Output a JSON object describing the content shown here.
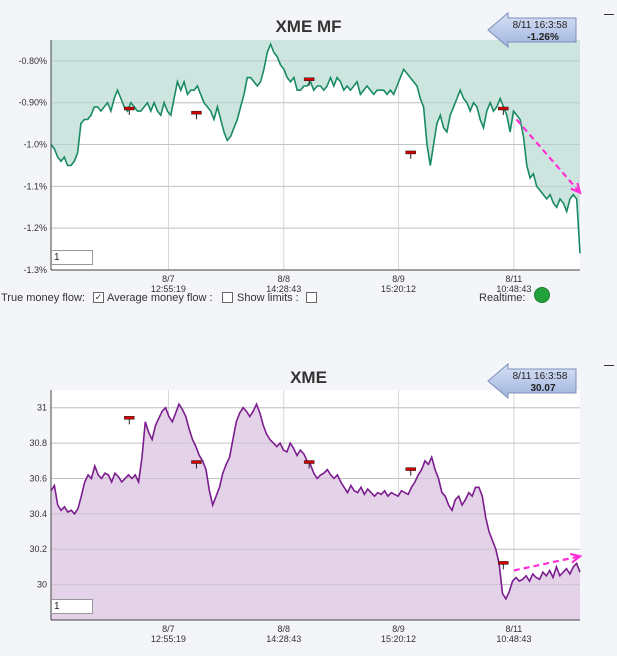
{
  "controls": {
    "true_money_flow_label": "True money flow:",
    "avg_money_flow_label": "Average money flow :",
    "show_limits_label": "Show limits :",
    "realtime_label": "Realtime:",
    "true_money_flow_checked": true,
    "avg_money_flow_checked": false,
    "show_limits_checked": false,
    "realtime_color": "#22a23a"
  },
  "chart_data": [
    {
      "type": "area",
      "title": "XME MF",
      "ylim": [
        -1.3,
        -0.75
      ],
      "y_ticks": [
        -0.8,
        -0.9,
        -1.0,
        -1.1,
        -1.2,
        -1.3
      ],
      "y_tick_labels": [
        "-0.80%",
        "-0.90%",
        "-1.0%",
        "-1.1%",
        "-1.2%",
        "-1.3%"
      ],
      "x_ticks": [
        {
          "date": "8/7",
          "time": "12:55:19",
          "at": 0.222
        },
        {
          "date": "8/8",
          "time": "14:28:43",
          "at": 0.44
        },
        {
          "date": "8/9",
          "time": "15:20:12",
          "at": 0.657
        },
        {
          "date": "8/11",
          "time": "10:48:43",
          "at": 0.875
        }
      ],
      "line_color": "#1a8a66",
      "fill_color": "#cde5df",
      "callout": {
        "time": "8/11 16:3:58",
        "value": "-1.26%"
      },
      "zoom": "1",
      "series": [
        {
          "values": [
            -1.0,
            -1.01,
            -1.03,
            -1.04,
            -1.03,
            -1.05,
            -1.05,
            -1.04,
            -1.02,
            -0.95,
            -0.94,
            -0.94,
            -0.93,
            -0.91,
            -0.91,
            -0.92,
            -0.91,
            -0.9,
            -0.92,
            -0.89,
            -0.87,
            -0.89,
            -0.91,
            -0.92,
            -0.9,
            -0.91,
            -0.92,
            -0.92,
            -0.91,
            -0.9,
            -0.92,
            -0.9,
            -0.92,
            -0.93,
            -0.9,
            -0.92,
            -0.93,
            -0.89,
            -0.85,
            -0.87,
            -0.85,
            -0.88,
            -0.87,
            -0.87,
            -0.86,
            -0.88,
            -0.9,
            -0.91,
            -0.92,
            -0.94,
            -0.91,
            -0.94,
            -0.97,
            -0.99,
            -0.98,
            -0.96,
            -0.94,
            -0.91,
            -0.88,
            -0.84,
            -0.84,
            -0.85,
            -0.86,
            -0.85,
            -0.82,
            -0.78,
            -0.76,
            -0.78,
            -0.79,
            -0.81,
            -0.82,
            -0.84,
            -0.85,
            -0.84,
            -0.87,
            -0.87,
            -0.86,
            -0.86,
            -0.85,
            -0.87,
            -0.86,
            -0.86,
            -0.87,
            -0.86,
            -0.84,
            -0.86,
            -0.84,
            -0.85,
            -0.87,
            -0.86,
            -0.87,
            -0.86,
            -0.85,
            -0.88,
            -0.87,
            -0.86,
            -0.87,
            -0.88,
            -0.87,
            -0.87,
            -0.87,
            -0.88,
            -0.87,
            -0.88,
            -0.86,
            -0.84,
            -0.82,
            -0.83,
            -0.84,
            -0.85,
            -0.86,
            -0.89,
            -0.91,
            -1.0,
            -1.05,
            -1.0,
            -0.95,
            -0.93,
            -0.96,
            -0.97,
            -0.93,
            -0.91,
            -0.89,
            -0.87,
            -0.89,
            -0.9,
            -0.92,
            -0.9,
            -0.91,
            -0.94,
            -0.96,
            -0.92,
            -0.9,
            -0.92,
            -0.91,
            -0.89,
            -0.91,
            -0.93,
            -0.97,
            -0.92,
            -0.93,
            -0.94,
            -0.98,
            -1.05,
            -1.08,
            -1.07,
            -1.1,
            -1.11,
            -1.12,
            -1.13,
            -1.12,
            -1.14,
            -1.15,
            -1.13,
            -1.14,
            -1.16,
            -1.13,
            -1.12,
            -1.13,
            -1.26
          ]
        }
      ],
      "markers": [
        -0.915,
        -0.925,
        -0.845,
        -1.02,
        -0.915
      ],
      "marker_positions": [
        0.148,
        0.275,
        0.488,
        0.68,
        0.855
      ],
      "marker_color": "#d00000",
      "trend_arrow": {
        "from": [
          0.88,
          -0.94
        ],
        "to": [
          1.0,
          -1.115
        ],
        "color": "#ff2ed8"
      }
    },
    {
      "type": "area",
      "title": "XME",
      "ylim": [
        29.8,
        31.1
      ],
      "y_ticks": [
        31,
        30.8,
        30.6,
        30.4,
        30.2,
        30
      ],
      "y_tick_labels": [
        "31",
        "30.8",
        "30.6",
        "30.4",
        "30.2",
        "30"
      ],
      "x_ticks": [
        {
          "date": "8/7",
          "time": "12:55:19",
          "at": 0.222
        },
        {
          "date": "8/8",
          "time": "14:28:43",
          "at": 0.44
        },
        {
          "date": "8/9",
          "time": "15:20:12",
          "at": 0.657
        },
        {
          "date": "8/11",
          "time": "10:48:43",
          "at": 0.875
        }
      ],
      "line_color": "#7b1c8f",
      "fill_color": "#e4d3e8",
      "callout": {
        "time": "8/11 16:3:58",
        "value": "30.07"
      },
      "zoom": "1",
      "series": [
        {
          "values": [
            30.53,
            30.56,
            30.45,
            30.42,
            30.44,
            30.41,
            30.42,
            30.4,
            30.43,
            30.5,
            30.58,
            30.62,
            30.6,
            30.67,
            30.62,
            30.6,
            30.63,
            30.62,
            30.58,
            30.63,
            30.61,
            30.58,
            30.6,
            30.62,
            30.6,
            30.62,
            30.58,
            30.72,
            30.92,
            30.86,
            30.82,
            30.9,
            30.94,
            30.98,
            31.0,
            30.95,
            30.92,
            30.97,
            31.02,
            30.99,
            30.95,
            30.88,
            30.82,
            30.78,
            30.73,
            30.7,
            30.65,
            30.53,
            30.45,
            30.5,
            30.55,
            30.63,
            30.68,
            30.72,
            30.82,
            30.92,
            30.97,
            31.0,
            30.98,
            30.95,
            30.98,
            31.02,
            30.97,
            30.9,
            30.85,
            30.82,
            30.8,
            30.78,
            30.8,
            30.76,
            30.75,
            30.8,
            30.77,
            30.73,
            30.76,
            30.74,
            30.7,
            30.68,
            30.63,
            30.6,
            30.62,
            30.63,
            30.65,
            30.62,
            30.6,
            30.62,
            30.58,
            30.55,
            30.52,
            30.56,
            30.53,
            30.52,
            30.55,
            30.51,
            30.54,
            30.52,
            30.5,
            30.52,
            30.51,
            30.53,
            30.5,
            30.52,
            30.51,
            30.5,
            30.53,
            30.52,
            30.51,
            30.55,
            30.58,
            30.62,
            30.65,
            30.7,
            30.68,
            30.72,
            30.65,
            30.6,
            30.52,
            30.5,
            30.45,
            30.42,
            30.48,
            30.5,
            30.45,
            30.48,
            30.52,
            30.5,
            30.55,
            30.55,
            30.5,
            30.38,
            30.3,
            30.25,
            30.2,
            30.12,
            29.95,
            29.92,
            29.96,
            30.02,
            30.04,
            30.02,
            30.03,
            30.05,
            30.02,
            30.06,
            30.04,
            30.03,
            30.07,
            30.05,
            30.08,
            30.04,
            30.1,
            30.05,
            30.07,
            30.09,
            30.06,
            30.1,
            30.12,
            30.07
          ]
        }
      ],
      "markers": [
        30.94,
        30.69,
        30.69,
        30.65,
        30.12
      ],
      "marker_positions": [
        0.148,
        0.275,
        0.488,
        0.68,
        0.855
      ],
      "marker_color": "#d00000",
      "trend_arrow": {
        "from": [
          0.875,
          30.08
        ],
        "to": [
          1.0,
          30.16
        ],
        "color": "#ff2ed8"
      }
    }
  ]
}
